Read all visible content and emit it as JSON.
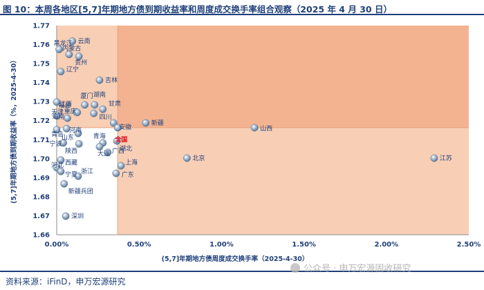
{
  "figure": {
    "title": "图 10：本周各地区[5,7]年期地方债到期收益率和周度成交换手率组合观察（2025 年 4 月 30 日）",
    "source": "资料来源：iFinD，申万宏源研究",
    "watermark": "公众号 · 申万宏源固收研究"
  },
  "colors": {
    "region_fill": "#f8cfb5",
    "corner_fill": "#f3b391",
    "text": "#1f3f7a",
    "point": "#8fa8c4",
    "highlight_label": "#e60012"
  },
  "chart_data": {
    "type": "scatter",
    "xlabel": "(5,7]年期地方债周度成交换手率（2025-4-30）",
    "ylabel": "(5,7]年期地方债到期收益率（%，2025-4-30）",
    "xlim": [
      0,
      0.025
    ],
    "ylim": [
      1.66,
      1.77
    ],
    "x_ticks": [
      "0.00%",
      "0.50%",
      "1.00%",
      "1.50%",
      "2.00%",
      "2.50%"
    ],
    "y_ticks": [
      "1.66",
      "1.67",
      "1.68",
      "1.69",
      "1.70",
      "1.71",
      "1.72",
      "1.73",
      "1.74",
      "1.75",
      "1.76",
      "1.77"
    ],
    "reference_lines": {
      "x": 0.0037,
      "y": 1.7163
    },
    "shading": "above horizontal reference or right of vertical reference shaded; upper-right quadrant darker",
    "grid": false,
    "points": [
      {
        "name": "黑龙江",
        "x": 0.00015,
        "y": 1.7575
      },
      {
        "name": "云南",
        "x": 0.00095,
        "y": 1.7618
      },
      {
        "name": "内蒙古",
        "x": 0.00075,
        "y": 1.7548
      },
      {
        "name": "贵州",
        "x": 0.00135,
        "y": 1.7538
      },
      {
        "name": "辽宁",
        "x": 0.00025,
        "y": 1.7458
      },
      {
        "name": "吉林",
        "x": 0.0026,
        "y": 1.7413
      },
      {
        "name": "江西",
        "x": 0.0,
        "y": 1.7298
      },
      {
        "name": "厦门",
        "x": 0.0017,
        "y": 1.7283
      },
      {
        "name": "湖南",
        "x": 0.0023,
        "y": 1.7283
      },
      {
        "name": "福建",
        "x": 0.0012,
        "y": 1.7245
      },
      {
        "name": "甘肃",
        "x": 0.0028,
        "y": 1.726
      },
      {
        "name": "天津",
        "x": 0.0,
        "y": 1.7225
      },
      {
        "name": "海南",
        "x": 0.00065,
        "y": 1.7213
      },
      {
        "name": "重庆",
        "x": 0.00125,
        "y": 1.7243
      },
      {
        "name": "四川",
        "x": 0.00225,
        "y": 1.7238
      },
      {
        "name": "安徽",
        "x": 0.00345,
        "y": 1.7188
      },
      {
        "name": "新疆",
        "x": 0.0054,
        "y": 1.7188
      },
      {
        "name": "山西",
        "x": 0.012,
        "y": 1.7163
      },
      {
        "name": "河南",
        "x": 0.0006,
        "y": 1.7158
      },
      {
        "name": "青岛",
        "x": 0.0,
        "y": 1.7153
      },
      {
        "name": "全国",
        "x": 0.0037,
        "y": 1.7163,
        "highlight": true
      },
      {
        "name": "山东",
        "x": 0.0013,
        "y": 1.7133
      },
      {
        "name": "宁波",
        "x": 0.0004,
        "y": 1.7083
      },
      {
        "name": "陕西",
        "x": 0.00135,
        "y": 1.7078
      },
      {
        "name": "青海",
        "x": 0.0028,
        "y": 1.7083
      },
      {
        "name": "湖北",
        "x": 0.00365,
        "y": 1.7093
      },
      {
        "name": "大连",
        "x": 0.0026,
        "y": 1.7063
      },
      {
        "name": "广西",
        "x": 0.0031,
        "y": 1.7033
      },
      {
        "name": "北京",
        "x": 0.0079,
        "y": 1.7003
      },
      {
        "name": "江苏",
        "x": 0.0229,
        "y": 1.7003
      },
      {
        "name": "西藏",
        "x": 0.00025,
        "y": 1.6993
      },
      {
        "name": "上海",
        "x": 0.0039,
        "y": 1.6963
      },
      {
        "name": "河北",
        "x": 0.0,
        "y": 1.6953
      },
      {
        "name": "宁夏",
        "x": 0.00025,
        "y": 1.6933
      },
      {
        "name": "浙江",
        "x": 0.0013,
        "y": 1.6908
      },
      {
        "name": "广东",
        "x": 0.0036,
        "y": 1.6923
      },
      {
        "name": "新疆兵团",
        "x": 0.00045,
        "y": 1.6868
      },
      {
        "name": "深圳",
        "x": 0.00055,
        "y": 1.6698
      }
    ]
  }
}
